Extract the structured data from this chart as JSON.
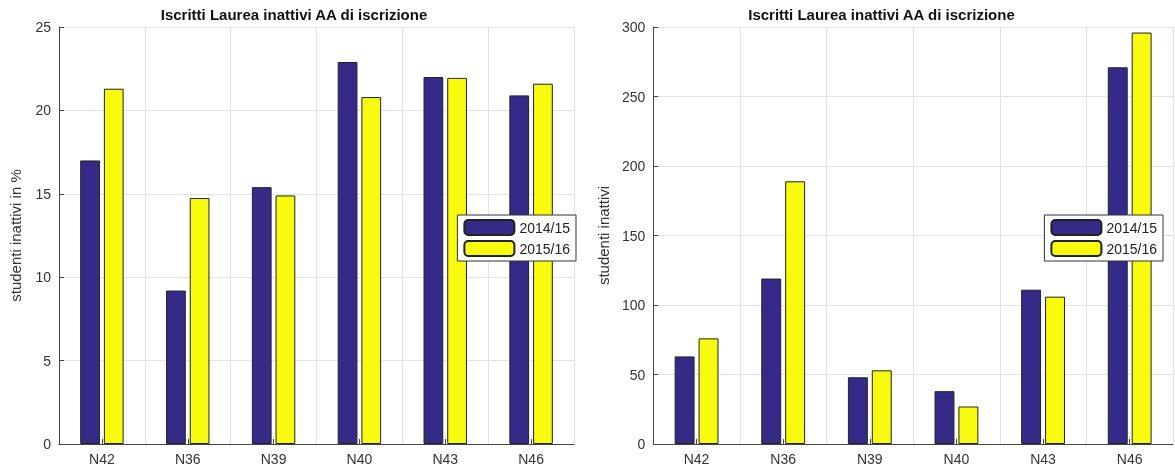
{
  "chart_data": [
    {
      "type": "bar",
      "title": "Iscritti Laurea inattivi AA di iscrizione",
      "ylabel": "studenti inattivi in %",
      "categories": [
        "N42",
        "N36",
        "N39",
        "N40",
        "N43",
        "N46"
      ],
      "series": [
        {
          "name": "2014/15",
          "color": "#352a87",
          "values": [
            17.0,
            9.2,
            15.4,
            22.9,
            22.0,
            20.9
          ]
        },
        {
          "name": "2015/16",
          "color": "#f9fb0e",
          "values": [
            21.3,
            14.75,
            14.9,
            20.8,
            21.95,
            21.6
          ]
        }
      ],
      "ylim": [
        0,
        25
      ],
      "yticks": [
        0,
        5,
        10,
        15,
        20,
        25
      ],
      "grid": true,
      "legend": "right"
    },
    {
      "type": "bar",
      "title": "Iscritti Laurea inattivi AA di iscrizione",
      "ylabel": "studenti inattivi",
      "categories": [
        "N42",
        "N36",
        "N39",
        "N40",
        "N43",
        "N46"
      ],
      "series": [
        {
          "name": "2014/15",
          "color": "#352a87",
          "values": [
            63,
            119,
            48,
            38,
            111,
            271
          ]
        },
        {
          "name": "2015/16",
          "color": "#f9fb0e",
          "values": [
            76,
            189,
            53,
            27,
            106,
            296
          ]
        }
      ],
      "ylim": [
        0,
        300
      ],
      "yticks": [
        0,
        50,
        100,
        150,
        200,
        250,
        300
      ],
      "grid": true,
      "legend": "right"
    }
  ]
}
